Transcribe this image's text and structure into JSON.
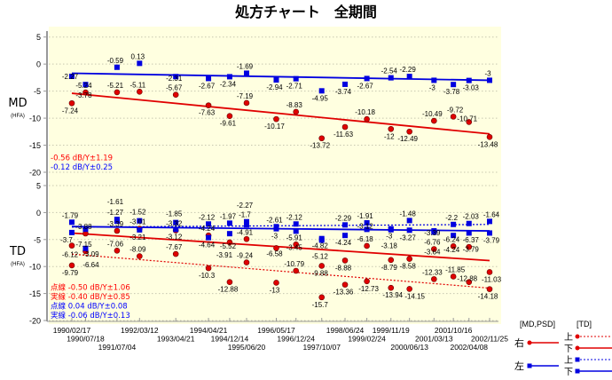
{
  "title": "処方チャート　全期間",
  "chart_data": [
    {
      "type": "scatter",
      "ylabel": "MD",
      "ylabel_sub": "(HFA)",
      "ylim": [
        -20,
        5
      ],
      "yticks": [
        5,
        0,
        -5,
        -10,
        -15,
        -20
      ],
      "grid": true,
      "dates": [
        "1990/02/17",
        "1990/07/18",
        "1991/07/04",
        "1992/03/12",
        "1993/04/21",
        "1994/04/21",
        "1994/12/14",
        "1995/06/20",
        "1996/05/17",
        "1996/12/24",
        "1997/10/07",
        "1998/06/24",
        "1999/02/24",
        "1999/11/19",
        "2000/06/13",
        "2001/03/13",
        "2001/10/16",
        "2002/04/08",
        "2002/11/25"
      ],
      "series": [
        {
          "key": "right",
          "color": "#e00000",
          "marker": "circle",
          "line": "solid",
          "values": [
            -7.24,
            -5.24,
            -5.21,
            -5.11,
            -5.67,
            -7.63,
            -9.61,
            -7.19,
            -10.17,
            -8.83,
            -13.72,
            -11.63,
            -10.18,
            -12,
            -12.49,
            -10.49,
            -9.72,
            -10.71,
            -13.48
          ],
          "trend": [
            -5.4,
            -12.9
          ]
        },
        {
          "key": "left",
          "color": "#0000e0",
          "marker": "square",
          "line": "solid",
          "values": [
            -2.27,
            -3.78,
            -0.59,
            0.13,
            -2.31,
            -2.67,
            -2.34,
            -1.69,
            -2.94,
            -2.71,
            -4.95,
            -3.74,
            -2.67,
            -2.54,
            -2.29,
            -3,
            -3.78,
            -3.03,
            -3
          ],
          "trend": [
            -1.7,
            -3.0
          ]
        }
      ],
      "notes": [
        {
          "text": "-0.56 dB/Y±1.19",
          "color": "#ff0000"
        },
        {
          "text": "-0.12 dB/Y±0.25",
          "color": "#0000ff"
        }
      ]
    },
    {
      "type": "scatter",
      "ylabel": "TD",
      "ylabel_sub": "(HFA)",
      "ylim": [
        -20,
        5
      ],
      "yticks": [
        5,
        0,
        -5,
        -10,
        -15,
        -20
      ],
      "grid": true,
      "series": [
        {
          "key": "right-upper",
          "color": "#e00000",
          "marker": "circle",
          "line": "dotted",
          "values": [
            -9.79,
            -7.15,
            -7.06,
            -8.09,
            -7.67,
            -10.3,
            -12.88,
            -9.24,
            -13,
            -10.79,
            -15.7,
            -13.36,
            -12.73,
            -13.94,
            -14.15,
            -12.33,
            -11.85,
            -12.88,
            -14.18
          ],
          "trend": [
            -7.7,
            -14.0
          ]
        },
        {
          "key": "right-lower",
          "color": "#e00000",
          "marker": "circle",
          "line": "solid",
          "values": [
            -6.12,
            -3.88,
            -3.39,
            -3.01,
            -3.32,
            -4.24,
            -5.52,
            -4.91,
            -6.58,
            -5.91,
            -9.88,
            -8.88,
            -6.18,
            -8.79,
            -8.58,
            -6.76,
            -6.24,
            -6.37,
            -11.03
          ],
          "trend": [
            -3.8,
            -8.9
          ]
        },
        {
          "key": "left-upper",
          "color": "#0000e0",
          "marker": "square",
          "line": "dotted",
          "values": [
            -1.79,
            -3.09,
            -1.27,
            -1.52,
            -1.85,
            -2.12,
            -1.97,
            -1.7,
            -3,
            -2.12,
            -4.82,
            -2.29,
            -1.91,
            -3,
            -1.48,
            -3.39,
            -2.2,
            -2.03,
            -1.64
          ],
          "trend": [
            -2.7,
            -2.2
          ]
        },
        {
          "key": "left-lower",
          "color": "#0000e0",
          "marker": "square",
          "line": "solid",
          "values": [
            -3.7,
            -6.64,
            -1.61,
            -3.21,
            -3.12,
            -4.64,
            -3.91,
            -2.27,
            -2.61,
            -3.45,
            -5.12,
            -4.24,
            -3.12,
            -3.18,
            -3.27,
            -3.64,
            -4.24,
            -3.79,
            -3.79
          ],
          "trend": [
            -2.6,
            -3.4
          ]
        }
      ],
      "notes": [
        {
          "text": "点線 -0.50 dB/Y±1.06",
          "color": "#ff0000"
        },
        {
          "text": "実線 -0.40 dB/Y±0.85",
          "color": "#ff0000"
        },
        {
          "text": "点線 0.04 dB/Y±0.08",
          "color": "#0000ff"
        },
        {
          "text": "実線 -0.06 dB/Y±0.13",
          "color": "#0000ff"
        }
      ]
    }
  ],
  "legend": {
    "md_header": "[MD,PSD]",
    "td_header": "[TD]",
    "right": "右",
    "left": "左",
    "upper": "上",
    "lower": "下"
  },
  "colors": {
    "plot_bg": "#ffffe0",
    "red": "#e00000",
    "blue": "#0000e0"
  }
}
